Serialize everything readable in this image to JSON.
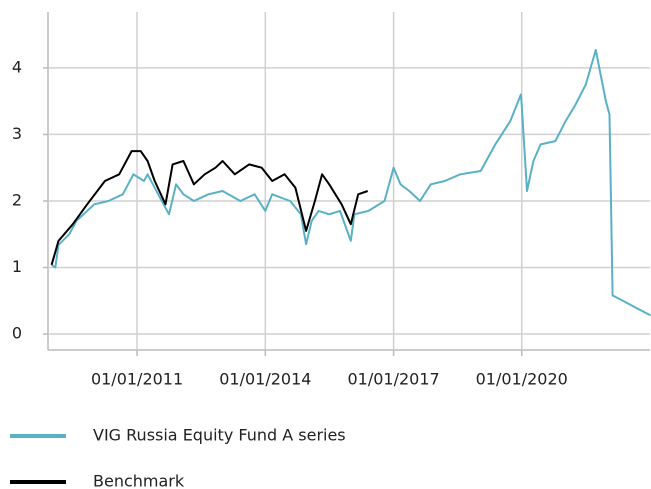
{
  "chart_data": {
    "type": "line",
    "xlim": [
      "2008-12-01",
      "2023-01-01"
    ],
    "xticks": [
      {
        "value": "2011-01-01",
        "label": "01/01/2011"
      },
      {
        "value": "2014-01-01",
        "label": "01/01/2014"
      },
      {
        "value": "2017-01-01",
        "label": "01/01/2017"
      },
      {
        "value": "2020-01-01",
        "label": "01/01/2020"
      }
    ],
    "ylim": [
      -0.24,
      4.84
    ],
    "yticks": [
      0,
      1,
      2,
      3,
      4
    ],
    "grid": true,
    "legend": "bottom",
    "series": [
      {
        "name": "VIG Russia Equity Fund A series",
        "color": "#5ab1c6",
        "x": [
          "2009-01-01",
          "2009-02-01",
          "2009-03-01",
          "2009-06-01",
          "2009-08-01",
          "2010-01-01",
          "2010-05-01",
          "2010-09-01",
          "2010-12-01",
          "2011-03-01",
          "2011-04-01",
          "2011-07-01",
          "2011-10-01",
          "2011-12-01",
          "2012-02-01",
          "2012-05-01",
          "2012-09-01",
          "2013-01-01",
          "2013-06-01",
          "2013-10-01",
          "2014-01-01",
          "2014-03-01",
          "2014-08-01",
          "2014-11-01",
          "2014-12-15",
          "2015-02-01",
          "2015-04-01",
          "2015-07-01",
          "2015-10-01",
          "2016-01-01",
          "2016-02-01",
          "2016-06-01",
          "2016-10-15",
          "2017-01-01",
          "2017-03-01",
          "2017-05-15",
          "2017-08-15",
          "2017-11-15",
          "2018-03-15",
          "2018-07-25",
          "2019-01-15",
          "2019-05-20",
          "2019-09-25",
          "2019-12-25",
          "2020-01-01",
          "2020-02-15",
          "2020-04-10",
          "2020-06-10",
          "2020-10-15",
          "2021-01-10",
          "2021-04-05",
          "2021-07-01",
          "2021-09-25",
          "2021-11-05",
          "2021-12-20",
          "2022-01-20",
          "2022-02-15",
          "2023-01-05"
        ],
        "values": [
          1.04,
          1.0,
          1.34,
          1.5,
          1.7,
          1.95,
          2.0,
          2.1,
          2.4,
          2.3,
          2.4,
          2.1,
          1.8,
          2.25,
          2.1,
          2.0,
          2.1,
          2.15,
          2.0,
          2.1,
          1.85,
          2.1,
          2.0,
          1.8,
          1.35,
          1.7,
          1.85,
          1.8,
          1.85,
          1.4,
          1.8,
          1.85,
          2.0,
          2.5,
          2.25,
          2.15,
          2.0,
          2.25,
          2.3,
          2.4,
          2.45,
          2.85,
          3.2,
          3.6,
          3.45,
          2.15,
          2.6,
          2.85,
          2.9,
          3.2,
          3.45,
          3.75,
          4.27,
          3.9,
          3.5,
          3.3,
          0.58,
          0.28
        ]
      },
      {
        "name": "Benchmark",
        "color": "#000000",
        "x": [
          "2009-01-01",
          "2009-03-01",
          "2009-07-01",
          "2009-11-01",
          "2010-04-01",
          "2010-08-01",
          "2010-11-15",
          "2011-02-01",
          "2011-04-01",
          "2011-06-01",
          "2011-09-01",
          "2011-11-01",
          "2012-02-01",
          "2012-05-01",
          "2012-08-01",
          "2012-11-01",
          "2013-01-01",
          "2013-04-15",
          "2013-08-15",
          "2013-12-01",
          "2014-03-01",
          "2014-06-15",
          "2014-09-15",
          "2014-12-15",
          "2015-03-01",
          "2015-05-01",
          "2015-07-01",
          "2015-10-15",
          "2016-01-01",
          "2016-03-05",
          "2016-05-25"
        ],
        "values": [
          1.04,
          1.4,
          1.65,
          1.95,
          2.3,
          2.4,
          2.75,
          2.75,
          2.6,
          2.3,
          1.95,
          2.55,
          2.6,
          2.25,
          2.4,
          2.5,
          2.6,
          2.4,
          2.55,
          2.5,
          2.3,
          2.4,
          2.2,
          1.55,
          2.0,
          2.4,
          2.25,
          1.95,
          1.65,
          2.1,
          2.15
        ]
      }
    ]
  }
}
